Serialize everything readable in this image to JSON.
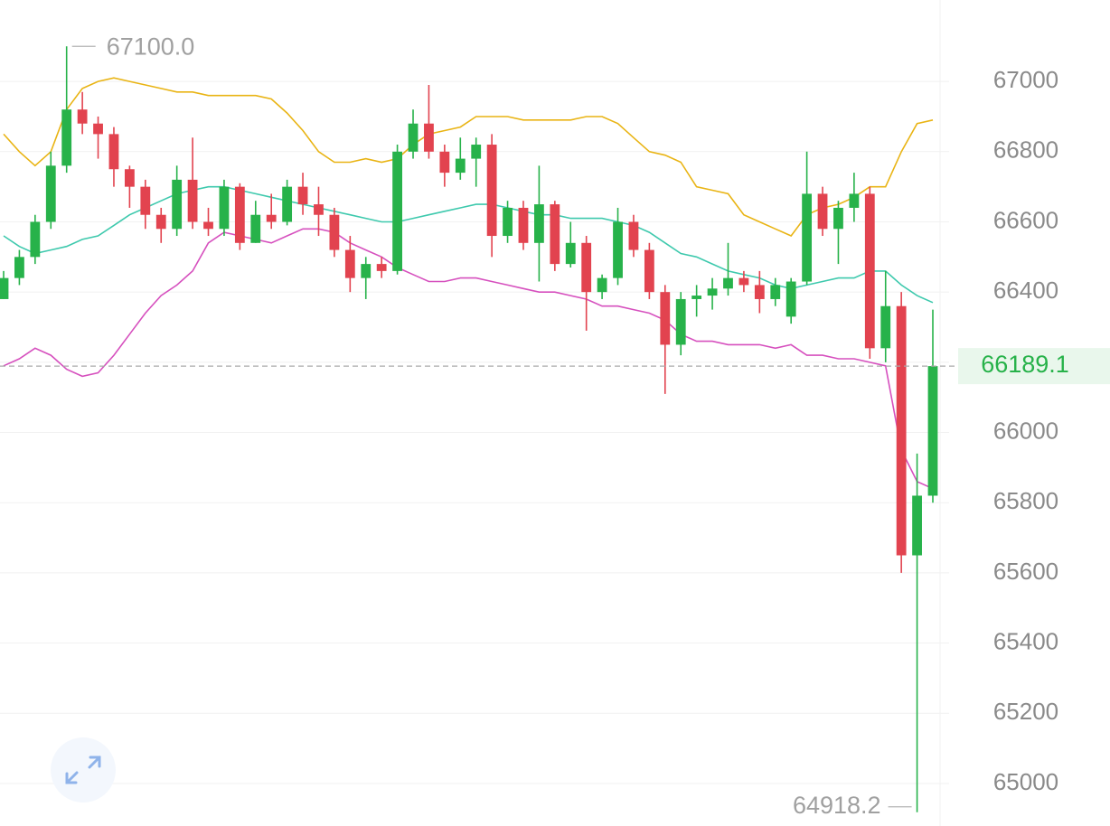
{
  "chart_data": {
    "type": "candlestick",
    "open": [
      66380,
      66440,
      66500,
      66600,
      66760,
      66920,
      66880,
      66850,
      66750,
      66700,
      66620,
      66580,
      66720,
      66600,
      66580,
      66700,
      66540,
      66620,
      66600,
      66700,
      66650,
      66620,
      66520,
      66440,
      66480,
      66460,
      66800,
      66880,
      66800,
      66740,
      66780,
      66820,
      66560,
      66640,
      66540,
      66650,
      66480,
      66540,
      66400,
      66440,
      66600,
      66520,
      66400,
      66250,
      66380,
      66390,
      66410,
      66440,
      66420,
      66380,
      66330,
      66430,
      66680,
      66580,
      66640,
      66680,
      66240,
      66360,
      65650,
      65820
    ],
    "high": [
      66460,
      66520,
      66620,
      66800,
      67100,
      66970,
      66900,
      66870,
      66760,
      66720,
      66640,
      66760,
      66840,
      66640,
      66720,
      66710,
      66660,
      66680,
      66720,
      66740,
      66700,
      66640,
      66560,
      66500,
      66500,
      66820,
      66920,
      66990,
      66820,
      66840,
      66840,
      66850,
      66660,
      66660,
      66760,
      66660,
      66600,
      66560,
      66450,
      66640,
      66620,
      66540,
      66420,
      66400,
      66420,
      66440,
      66540,
      66460,
      66460,
      66440,
      66440,
      66800,
      66700,
      66660,
      66740,
      66700,
      66460,
      66400,
      65940,
      66350
    ],
    "low": [
      66380,
      66420,
      66480,
      66580,
      66740,
      66850,
      66780,
      66700,
      66640,
      66580,
      66540,
      66560,
      66580,
      66560,
      66560,
      66520,
      66540,
      66580,
      66590,
      66620,
      66560,
      66500,
      66400,
      66380,
      66440,
      66450,
      66780,
      66780,
      66700,
      66720,
      66700,
      66500,
      66540,
      66520,
      66430,
      66460,
      66470,
      66290,
      66380,
      66420,
      66500,
      66380,
      66110,
      66220,
      66330,
      66350,
      66390,
      66400,
      66340,
      66360,
      66310,
      66420,
      66560,
      66480,
      66600,
      66210,
      66200,
      65600,
      64918.2,
      65800
    ],
    "close": [
      66440,
      66500,
      66600,
      66760,
      66920,
      66880,
      66850,
      66750,
      66700,
      66620,
      66580,
      66720,
      66600,
      66580,
      66700,
      66540,
      66620,
      66600,
      66700,
      66650,
      66620,
      66520,
      66440,
      66480,
      66460,
      66800,
      66880,
      66800,
      66740,
      66780,
      66820,
      66560,
      66640,
      66540,
      66650,
      66480,
      66540,
      66400,
      66440,
      66600,
      66520,
      66400,
      66250,
      66380,
      66390,
      66410,
      66440,
      66420,
      66380,
      66420,
      66430,
      66680,
      66580,
      66640,
      66680,
      66240,
      66360,
      65650,
      65820,
      66189.1
    ],
    "up_color": "#27b24a",
    "down_color": "#e2434f",
    "series": [
      {
        "color": "#e9b414",
        "values": [
          66850,
          66800,
          66760,
          66800,
          66920,
          66980,
          67000,
          67010,
          67000,
          66990,
          66980,
          66970,
          66970,
          66960,
          66960,
          66960,
          66960,
          66950,
          66910,
          66860,
          66800,
          66770,
          66770,
          66780,
          66770,
          66780,
          66820,
          66850,
          66860,
          66870,
          66900,
          66900,
          66900,
          66890,
          66890,
          66890,
          66890,
          66900,
          66900,
          66880,
          66840,
          66800,
          66790,
          66770,
          66700,
          66690,
          66680,
          66620,
          66600,
          66580,
          66560,
          66620,
          66640,
          66650,
          66670,
          66700,
          66700,
          66800,
          66880,
          66890
        ]
      },
      {
        "color": "#3ec9ad",
        "values": [
          66560,
          66530,
          66510,
          66520,
          66530,
          66550,
          66560,
          66590,
          66620,
          66640,
          66660,
          66680,
          66690,
          66700,
          66700,
          66690,
          66680,
          66670,
          66660,
          66650,
          66640,
          66630,
          66620,
          66610,
          66600,
          66600,
          66610,
          66620,
          66630,
          66640,
          66650,
          66650,
          66640,
          66630,
          66620,
          66620,
          66610,
          66610,
          66610,
          66600,
          66590,
          66570,
          66540,
          66510,
          66500,
          66480,
          66460,
          66450,
          66440,
          66420,
          66410,
          66420,
          66430,
          66440,
          66440,
          66460,
          66460,
          66420,
          66390,
          66370
        ]
      },
      {
        "color": "#d650be",
        "values": [
          66190,
          66210,
          66240,
          66220,
          66180,
          66160,
          66170,
          66220,
          66280,
          66340,
          66390,
          66420,
          66460,
          66540,
          66570,
          66560,
          66550,
          66540,
          66560,
          66580,
          66580,
          66570,
          66540,
          66520,
          66500,
          66470,
          66450,
          66430,
          66430,
          66440,
          66440,
          66430,
          66420,
          66410,
          66400,
          66400,
          66390,
          66380,
          66360,
          66360,
          66350,
          66340,
          66320,
          66280,
          66260,
          66260,
          66250,
          66250,
          66250,
          66240,
          66250,
          66220,
          66220,
          66210,
          66210,
          66200,
          66190,
          65950,
          65860,
          65840
        ]
      }
    ],
    "ylim": [
      64879,
      67232
    ],
    "yticks": [
      65000,
      65200,
      65400,
      65600,
      65800,
      66000,
      66200,
      66400,
      66600,
      66800,
      67000
    ],
    "grid": true,
    "annotations": [
      {
        "value": 67100,
        "label": "67100.0"
      },
      {
        "value": 64918.2,
        "label": "64918.2"
      }
    ],
    "last_price": 66189.1
  }
}
